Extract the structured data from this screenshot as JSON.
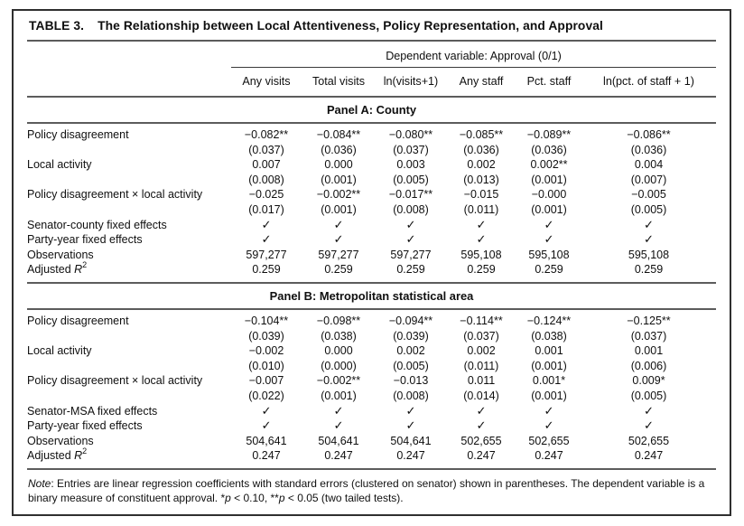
{
  "title": {
    "label": "TABLE 3.",
    "text": "The Relationship between Local Attentiveness, Policy Representation, and Approval"
  },
  "header": {
    "spanner": "Dependent variable: Approval (0/1)",
    "columns": [
      "Any visits",
      "Total visits",
      "ln(visits+1)",
      "Any staff",
      "Pct. staff",
      "ln(pct. of staff + 1)"
    ]
  },
  "icons": {
    "checkmark": "✓"
  },
  "panels": [
    {
      "title": "Panel A: County",
      "rows": [
        {
          "type": "coef",
          "label": "Policy disagreement",
          "values": [
            "−0.082**",
            "−0.084**",
            "−0.080**",
            "−0.085**",
            "−0.089**",
            "−0.086**"
          ],
          "se": [
            "(0.037)",
            "(0.036)",
            "(0.037)",
            "(0.036)",
            "(0.036)",
            "(0.036)"
          ]
        },
        {
          "type": "coef",
          "label": "Local activity",
          "values": [
            "0.007",
            "0.000",
            "0.003",
            "0.002",
            "0.002**",
            "0.004"
          ],
          "se": [
            "(0.008)",
            "(0.001)",
            "(0.005)",
            "(0.013)",
            "(0.001)",
            "(0.007)"
          ]
        },
        {
          "type": "coef",
          "label": "Policy disagreement × local activity",
          "values": [
            "−0.025",
            "−0.002**",
            "−0.017**",
            "−0.015",
            "−0.000",
            "−0.005"
          ],
          "se": [
            "(0.017)",
            "(0.001)",
            "(0.008)",
            "(0.011)",
            "(0.001)",
            "(0.005)"
          ]
        },
        {
          "type": "check",
          "label": "Senator-county fixed effects",
          "values": [
            "✓",
            "✓",
            "✓",
            "✓",
            "✓",
            "✓"
          ]
        },
        {
          "type": "check",
          "label": "Party-year fixed effects",
          "values": [
            "✓",
            "✓",
            "✓",
            "✓",
            "✓",
            "✓"
          ]
        },
        {
          "type": "plain",
          "label": "Observations",
          "values": [
            "597,277",
            "597,277",
            "597,277",
            "595,108",
            "595,108",
            "595,108"
          ]
        },
        {
          "type": "plain",
          "label_parts": {
            "prefix": "Adjusted ",
            "italic": "R",
            "sup": "2"
          },
          "values": [
            "0.259",
            "0.259",
            "0.259",
            "0.259",
            "0.259",
            "0.259"
          ]
        }
      ]
    },
    {
      "title": "Panel B: Metropolitan statistical area",
      "rows": [
        {
          "type": "coef",
          "label": "Policy disagreement",
          "values": [
            "−0.104**",
            "−0.098**",
            "−0.094**",
            "−0.114**",
            "−0.124**",
            "−0.125**"
          ],
          "se": [
            "(0.039)",
            "(0.038)",
            "(0.039)",
            "(0.037)",
            "(0.038)",
            "(0.037)"
          ]
        },
        {
          "type": "coef",
          "label": "Local activity",
          "values": [
            "−0.002",
            "0.000",
            "0.002",
            "0.002",
            "0.001",
            "0.001"
          ],
          "se": [
            "(0.010)",
            "(0.000)",
            "(0.005)",
            "(0.011)",
            "(0.001)",
            "(0.006)"
          ]
        },
        {
          "type": "coef",
          "label": "Policy disagreement × local activity",
          "values": [
            "−0.007",
            "−0.002**",
            "−0.013",
            "0.011",
            "0.001*",
            "0.009*"
          ],
          "se": [
            "(0.022)",
            "(0.001)",
            "(0.008)",
            "(0.014)",
            "(0.001)",
            "(0.005)"
          ]
        },
        {
          "type": "check",
          "label": "Senator-MSA fixed effects",
          "values": [
            "✓",
            "✓",
            "✓",
            "✓",
            "✓",
            "✓"
          ]
        },
        {
          "type": "check",
          "label": "Party-year fixed effects",
          "values": [
            "✓",
            "✓",
            "✓",
            "✓",
            "✓",
            "✓"
          ]
        },
        {
          "type": "plain",
          "label": "Observations",
          "values": [
            "504,641",
            "504,641",
            "504,641",
            "502,655",
            "502,655",
            "502,655"
          ]
        },
        {
          "type": "plain",
          "label_parts": {
            "prefix": "Adjusted ",
            "italic": "R",
            "sup": "2"
          },
          "values": [
            "0.247",
            "0.247",
            "0.247",
            "0.247",
            "0.247",
            "0.247"
          ]
        }
      ]
    }
  ],
  "note": {
    "label": "Note",
    "part1": ": Entries are linear regression coefficients with standard errors (clustered on senator) shown in parentheses. The dependent variable is a binary measure of constituent approval. *",
    "p1": "p",
    "part2": " < 0.10, **",
    "p2": "p",
    "part3": " < 0.05 (two tailed tests)."
  },
  "colors": {
    "rule": "#5c5c5c",
    "frame": "#2f2f2f",
    "text": "#0f0f0f"
  }
}
